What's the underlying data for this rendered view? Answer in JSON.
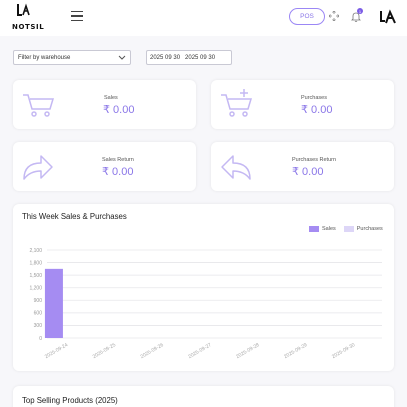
{
  "header": {
    "logo_text": "NOTSIL",
    "pos_label": "POS",
    "notification_count": "1"
  },
  "filters": {
    "warehouse_label": "Filter by warehouse",
    "date_range": "2025 09 30   2025 09 30"
  },
  "stats": [
    {
      "label": "Sales",
      "value": "₹ 0.00",
      "icon": "cart-icon"
    },
    {
      "label": "Purchases",
      "value": "₹ 0.00",
      "icon": "cart-plus-icon"
    },
    {
      "label": "Sales Return",
      "value": "₹ 0.00",
      "icon": "forward-arrow-icon"
    },
    {
      "label": "Purchases Return",
      "value": "₹ 0.00",
      "icon": "back-arrow-icon"
    }
  ],
  "colors": {
    "accent": "#8a76e8",
    "sales": "#a58cf2",
    "purchases": "#ddd6f7"
  },
  "chart_data": {
    "type": "bar",
    "title": "This Week Sales & Purchases",
    "categories": [
      "2025-09-24",
      "2025-09-25",
      "2025-09-26",
      "2025-09-27",
      "2025-09-28",
      "2025-09-29",
      "2025-09-30"
    ],
    "series": [
      {
        "name": "Sales",
        "values": [
          1650,
          0,
          0,
          0,
          0,
          0,
          0
        ]
      },
      {
        "name": "Purchases",
        "values": [
          0,
          0,
          0,
          0,
          0,
          0,
          0
        ]
      }
    ],
    "yticks": [
      "0",
      "300",
      "600",
      "900",
      "1,200",
      "1,500",
      "1,800",
      "2,100"
    ],
    "ylim": [
      0,
      2100
    ],
    "legend_position": "top-right",
    "grid": true
  },
  "bottom": {
    "title": "Top Selling Products (2025)"
  }
}
